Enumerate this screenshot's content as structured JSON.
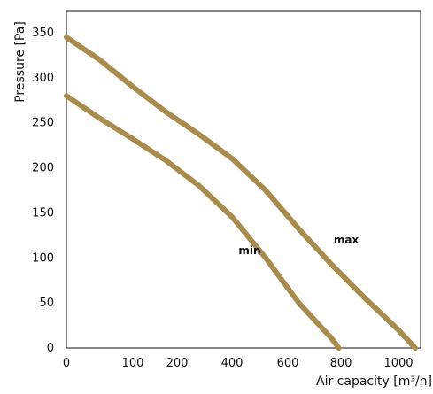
{
  "chart_data": {
    "type": "line",
    "title": "",
    "xlabel": "Air capacity [m³/h]",
    "ylabel": "Pressure [Pa]",
    "xlim": [
      0,
      1100
    ],
    "ylim": [
      0,
      350
    ],
    "x_ticks": [
      0,
      100,
      200,
      400,
      600,
      800,
      1000
    ],
    "x_tick_labels": [
      "0",
      "100",
      "200",
      "400",
      "600",
      "800",
      "1000"
    ],
    "y_ticks": [
      0,
      50,
      100,
      150,
      200,
      250,
      300,
      350
    ],
    "y_tick_labels": [
      "0",
      "50",
      "100",
      "150",
      "200",
      "250",
      "300",
      "350"
    ],
    "grid": true,
    "legend": "none",
    "series": [
      {
        "name": "max",
        "color": "#a98b4d",
        "points": [
          [
            0,
            345
          ],
          [
            100,
            320
          ],
          [
            200,
            290
          ],
          [
            300,
            262
          ],
          [
            400,
            237
          ],
          [
            500,
            210
          ],
          [
            600,
            175
          ],
          [
            700,
            132
          ],
          [
            800,
            92
          ],
          [
            900,
            55
          ],
          [
            1000,
            20
          ],
          [
            1050,
            0
          ]
        ]
      },
      {
        "name": "min",
        "color": "#a98b4d",
        "points": [
          [
            0,
            280
          ],
          [
            100,
            255
          ],
          [
            200,
            232
          ],
          [
            300,
            208
          ],
          [
            400,
            180
          ],
          [
            500,
            145
          ],
          [
            600,
            100
          ],
          [
            700,
            50
          ],
          [
            800,
            10
          ],
          [
            820,
            0
          ]
        ]
      }
    ],
    "annotations": [
      "min",
      "max"
    ]
  }
}
